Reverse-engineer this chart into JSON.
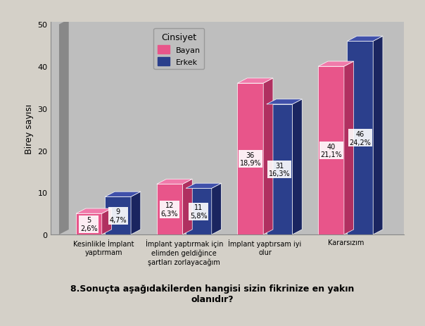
{
  "categories": [
    "Kesinlikle İmplant\nyaptırmam",
    "İmplant yaptırmak için\nelimden geldiğince\nşartları zorlayacağım",
    "İmplant yaptırsam iyi\nolur",
    "Kararsızım"
  ],
  "bayan_values": [
    5,
    12,
    36,
    40
  ],
  "erkek_values": [
    9,
    11,
    31,
    46
  ],
  "bayan_pcts": [
    "2,6%",
    "6,3%",
    "18,9%",
    "21,1%"
  ],
  "erkek_pcts": [
    "4,7%",
    "5,8%",
    "16,3%",
    "24,2%"
  ],
  "bayan_color": "#E8558A",
  "erkek_color": "#2B3F8C",
  "bayan_top_color": "#F07AAA",
  "erkek_top_color": "#4050AA",
  "bayan_side_color": "#B03060",
  "erkek_side_color": "#1A2560",
  "ylim": [
    0,
    50
  ],
  "yticks": [
    0,
    10,
    20,
    30,
    40,
    50
  ],
  "ylabel": "Birey sayısı",
  "legend_title": "Cinsiyet",
  "legend_bayan": "Bayan",
  "legend_erkek": "Erkek",
  "title": "8.Sonuçta aşağıdakilerden hangisi sizin fikrinize en yakın\nolanıdır?",
  "fig_bg_color": "#D4D0C8",
  "plot_bg_color": "#BEBEBE",
  "wall_color": "#A8A8A8"
}
